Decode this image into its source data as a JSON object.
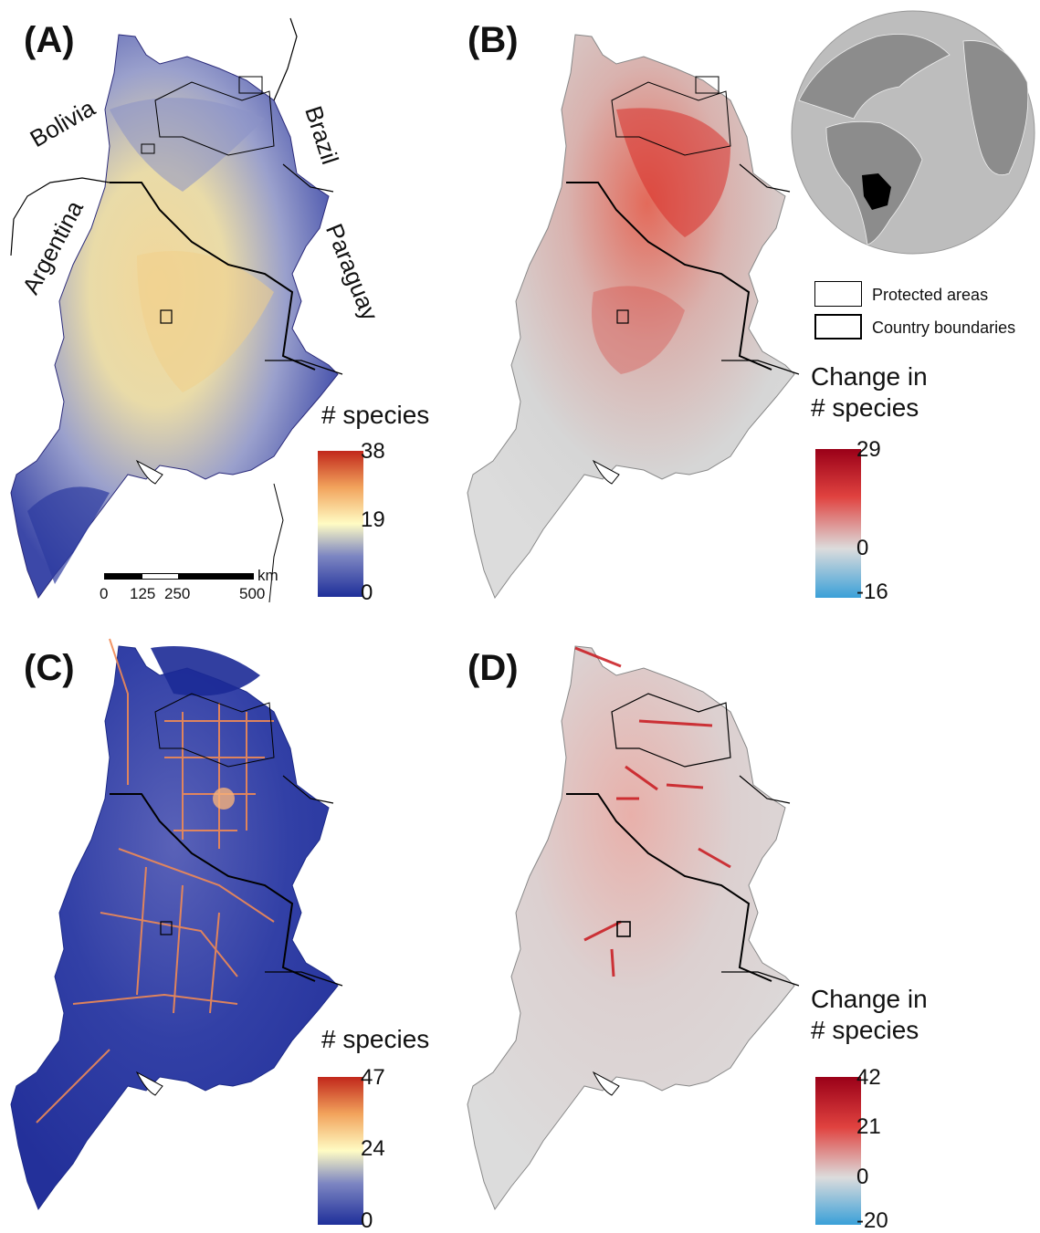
{
  "panels": {
    "a": {
      "letter": "(A)",
      "legend_title": "# species",
      "ticks": [
        "38",
        "19",
        "0"
      ]
    },
    "b": {
      "letter": "(B)",
      "legend_title": "Change in\n# species",
      "ticks": [
        "29",
        "0",
        "-16"
      ]
    },
    "c": {
      "letter": "(C)",
      "legend_title": "# species",
      "ticks": [
        "47",
        "24",
        "0"
      ]
    },
    "d": {
      "letter": "(D)",
      "legend_title": "Change in\n# species",
      "ticks": [
        "42",
        "21",
        "0",
        "-20"
      ]
    }
  },
  "countries": {
    "bolivia": "Bolivia",
    "brazil": "Brazil",
    "argentina": "Argentina",
    "paraguay": "Paraguay"
  },
  "scale": {
    "unit": "km",
    "labels": [
      "0",
      "125",
      "250",
      "500"
    ]
  },
  "key": {
    "protected": "Protected areas",
    "country": "Country boundaries"
  },
  "colors": {
    "low_blue": "#2a3a9e",
    "mid_yellow": "#fffdc0",
    "high_red": "#c42a1a",
    "change_neg": "#3fa3d6",
    "change_zero": "#dcdcdc",
    "change_pos": "#a8001c",
    "globe_ocean": "#bfbfbf",
    "globe_land": "#8a8a8a",
    "globe_highlight": "#000000"
  }
}
